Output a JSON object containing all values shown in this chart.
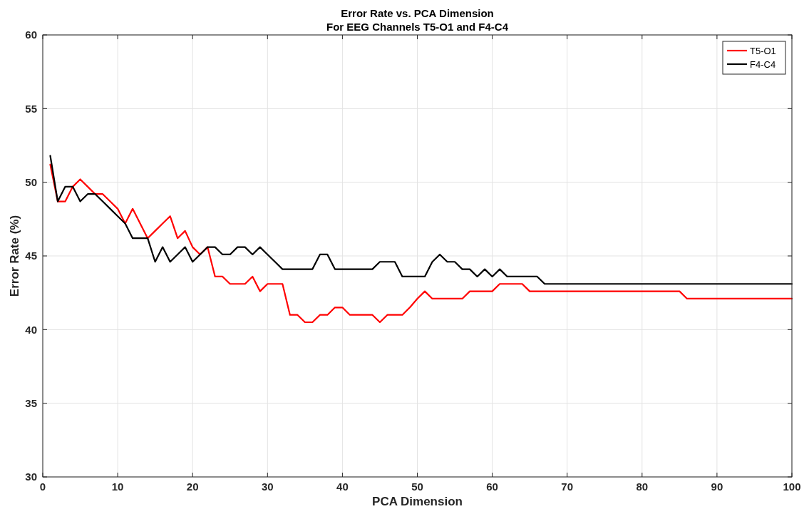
{
  "chart_data": {
    "type": "line",
    "title": "Error Rate vs. PCA Dimension",
    "subtitle": "For EEG Channels T5-O1 and F4-C4",
    "xlabel": "PCA Dimension",
    "ylabel": "Error Rate (%)",
    "x": [
      1,
      2,
      3,
      4,
      5,
      6,
      7,
      8,
      9,
      10,
      11,
      12,
      13,
      14,
      15,
      16,
      17,
      18,
      19,
      20,
      21,
      22,
      23,
      24,
      25,
      26,
      27,
      28,
      29,
      30,
      31,
      32,
      33,
      34,
      35,
      36,
      37,
      38,
      39,
      40,
      41,
      42,
      43,
      44,
      45,
      46,
      47,
      48,
      49,
      50,
      51,
      52,
      53,
      54,
      55,
      56,
      57,
      58,
      59,
      60,
      61,
      62,
      63,
      64,
      65,
      66,
      67,
      68,
      69,
      70,
      71,
      72,
      73,
      74,
      75,
      76,
      77,
      78,
      79,
      80,
      81,
      82,
      83,
      84,
      85,
      86,
      87,
      88,
      89,
      90,
      91,
      92,
      93,
      94,
      95,
      96,
      97,
      98,
      99,
      100
    ],
    "series": [
      {
        "name": "T5-O1",
        "color": "#ff0000",
        "values": [
          51.2,
          48.7,
          48.7,
          49.7,
          50.2,
          49.7,
          49.2,
          49.2,
          48.7,
          48.2,
          47.2,
          48.2,
          47.2,
          46.2,
          46.7,
          47.2,
          47.7,
          46.2,
          46.7,
          45.6,
          45.1,
          45.6,
          43.6,
          43.6,
          43.1,
          43.1,
          43.1,
          43.6,
          42.6,
          43.1,
          43.1,
          43.1,
          41.0,
          41.0,
          40.5,
          40.5,
          41.0,
          41.0,
          41.5,
          41.5,
          41.0,
          41.0,
          41.0,
          41.0,
          40.5,
          41.0,
          41.0,
          41.0,
          41.5,
          42.1,
          42.6,
          42.1,
          42.1,
          42.1,
          42.1,
          42.1,
          42.6,
          42.6,
          42.6,
          42.6,
          43.1,
          43.1,
          43.1,
          43.1,
          42.6,
          42.6,
          42.6,
          42.6,
          42.6,
          42.6,
          42.6,
          42.6,
          42.6,
          42.6,
          42.6,
          42.6,
          42.6,
          42.6,
          42.6,
          42.6,
          42.6,
          42.6,
          42.6,
          42.6,
          42.6,
          42.1,
          42.1,
          42.1,
          42.1,
          42.1,
          42.1,
          42.1,
          42.1,
          42.1,
          42.1,
          42.1,
          42.1,
          42.1,
          42.1,
          42.1
        ]
      },
      {
        "name": "F4-C4",
        "color": "#000000",
        "values": [
          51.8,
          48.7,
          49.7,
          49.7,
          48.7,
          49.2,
          49.2,
          48.7,
          48.2,
          47.7,
          47.2,
          46.2,
          46.2,
          46.2,
          44.6,
          45.6,
          44.6,
          45.1,
          45.6,
          44.6,
          45.1,
          45.6,
          45.6,
          45.1,
          45.1,
          45.6,
          45.6,
          45.1,
          45.6,
          45.1,
          44.6,
          44.1,
          44.1,
          44.1,
          44.1,
          44.1,
          45.1,
          45.1,
          44.1,
          44.1,
          44.1,
          44.1,
          44.1,
          44.1,
          44.6,
          44.6,
          44.6,
          43.6,
          43.6,
          43.6,
          43.6,
          44.6,
          45.1,
          44.6,
          44.6,
          44.1,
          44.1,
          43.6,
          44.1,
          43.6,
          44.1,
          43.6,
          43.6,
          43.6,
          43.6,
          43.6,
          43.1,
          43.1,
          43.1,
          43.1,
          43.1,
          43.1,
          43.1,
          43.1,
          43.1,
          43.1,
          43.1,
          43.1,
          43.1,
          43.1,
          43.1,
          43.1,
          43.1,
          43.1,
          43.1,
          43.1,
          43.1,
          43.1,
          43.1,
          43.1,
          43.1,
          43.1,
          43.1,
          43.1,
          43.1,
          43.1,
          43.1,
          43.1,
          43.1,
          43.1
        ]
      }
    ],
    "xlim": [
      0,
      100
    ],
    "xticks": [
      0,
      10,
      20,
      30,
      40,
      50,
      60,
      70,
      80,
      90,
      100
    ],
    "ylim": [
      30,
      60
    ],
    "yticks": [
      30,
      35,
      40,
      45,
      50,
      55,
      60
    ],
    "grid": true,
    "legend": "top right",
    "marker": "none",
    "line_style": "solid"
  }
}
